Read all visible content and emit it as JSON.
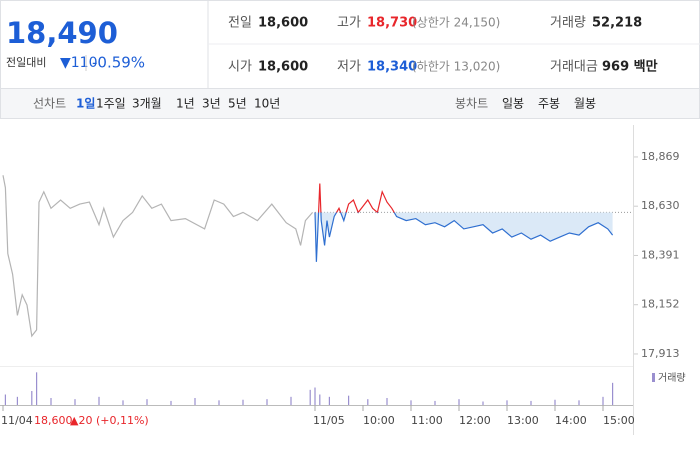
{
  "quote": {
    "price": "18,490",
    "change_label": "전일대비",
    "change": "▼110",
    "change_pct": "-0.59%"
  },
  "stats": [
    {
      "label": "전일",
      "value": "18,600"
    },
    {
      "label": "고가",
      "value": "18,730",
      "note": "(상한가 24,150)"
    },
    {
      "label": "거래량",
      "value": "52,218"
    },
    {
      "label": "시가",
      "value": "18,600"
    },
    {
      "label": "저가",
      "value": "18,340",
      "note": "(하한가 13,020)"
    },
    {
      "label": "거래대금",
      "value": "969 백만"
    }
  ],
  "tabs": {
    "line_label": "선차트",
    "line": [
      "1일",
      "1주일",
      "3개월",
      "1년",
      "3년",
      "5년",
      "10년"
    ],
    "candle_label": "봉차트",
    "candle": [
      "일봉",
      "주봉",
      "월봉"
    ]
  },
  "chart_data": {
    "type": "line",
    "xlim": [
      0,
      13
    ],
    "ylim": [
      17874,
      19024
    ],
    "yticks": [
      {
        "value": 17913,
        "label": "17,913"
      },
      {
        "value": 18152,
        "label": "18,152"
      },
      {
        "value": 18391,
        "label": "18,391"
      },
      {
        "value": 18630,
        "label": "18,630"
      },
      {
        "value": 18869,
        "label": "18,869"
      }
    ],
    "xticks": [
      {
        "value": 0,
        "label": "11/04"
      },
      {
        "value": 6.5,
        "label": "11/05"
      },
      {
        "value": 7.5,
        "label": "10:00"
      },
      {
        "value": 8.5,
        "label": "11:00"
      },
      {
        "value": 9.5,
        "label": "12:00"
      },
      {
        "value": 10.5,
        "label": "13:00"
      },
      {
        "value": 11.5,
        "label": "14:00"
      },
      {
        "value": 12.5,
        "label": "15:00"
      }
    ],
    "reference_value": 18600,
    "annotation": {
      "close": "18,600",
      "change": "▲20 (+0,11%)"
    },
    "series": [
      {
        "color": "#b4b4b4",
        "x": [
          0,
          0.05,
          0.1,
          0.2,
          0.3,
          0.4,
          0.5,
          0.6,
          0.7,
          0.75,
          0.85,
          1.0,
          1.2,
          1.4,
          1.6,
          1.8,
          2.0,
          2.1,
          2.3,
          2.5,
          2.7,
          2.9,
          3.1,
          3.3,
          3.5,
          3.8,
          4.2,
          4.4,
          4.6,
          4.8,
          5.0,
          5.3,
          5.6,
          5.9,
          6.1,
          6.2,
          6.3,
          6.45
        ],
        "values": [
          18780,
          18720,
          18400,
          18300,
          18100,
          18200,
          18150,
          18000,
          18030,
          18650,
          18700,
          18620,
          18660,
          18620,
          18640,
          18650,
          18540,
          18620,
          18480,
          18560,
          18600,
          18680,
          18620,
          18640,
          18560,
          18570,
          18520,
          18660,
          18640,
          18580,
          18600,
          18560,
          18640,
          18550,
          18520,
          18440,
          18560,
          18600
        ]
      },
      {
        "color": "#2f6fd0",
        "up_color": "#e8262b",
        "fill": "#dbe9f7",
        "x": [
          6.5,
          6.53,
          6.56,
          6.6,
          6.63,
          6.7,
          6.75,
          6.8,
          6.9,
          7.0,
          7.1,
          7.2,
          7.3,
          7.4,
          7.5,
          7.6,
          7.7,
          7.8,
          7.9,
          8.0,
          8.1,
          8.2,
          8.4,
          8.6,
          8.8,
          9.0,
          9.2,
          9.4,
          9.6,
          9.8,
          10.0,
          10.2,
          10.4,
          10.6,
          10.8,
          11.0,
          11.2,
          11.4,
          11.6,
          11.8,
          12.0,
          12.2,
          12.4,
          12.6,
          12.7
        ],
        "values": [
          18600,
          18360,
          18520,
          18740,
          18560,
          18440,
          18560,
          18480,
          18580,
          18620,
          18560,
          18640,
          18660,
          18600,
          18630,
          18660,
          18620,
          18600,
          18700,
          18650,
          18620,
          18580,
          18560,
          18570,
          18540,
          18550,
          18530,
          18560,
          18520,
          18530,
          18540,
          18500,
          18520,
          18480,
          18500,
          18470,
          18490,
          18460,
          18480,
          18500,
          18490,
          18530,
          18550,
          18520,
          18490
        ]
      }
    ],
    "volume": {
      "name": "거래량",
      "color": "#9a8fcf",
      "ylim": [
        0,
        3000
      ],
      "x": [
        0.05,
        0.3,
        0.6,
        0.7,
        1.0,
        1.5,
        2.0,
        2.5,
        3.0,
        3.5,
        4.0,
        4.5,
        5.0,
        5.5,
        6.0,
        6.4,
        6.5,
        6.6,
        6.8,
        7.2,
        7.6,
        8.0,
        8.5,
        9.0,
        9.5,
        10.0,
        10.5,
        11.0,
        11.5,
        12.0,
        12.5,
        12.7
      ],
      "values": [
        900,
        700,
        1200,
        2800,
        600,
        500,
        700,
        400,
        500,
        350,
        600,
        400,
        450,
        500,
        700,
        1300,
        1500,
        900,
        700,
        800,
        500,
        600,
        400,
        350,
        500,
        300,
        400,
        350,
        450,
        400,
        700,
        1900
      ]
    }
  }
}
